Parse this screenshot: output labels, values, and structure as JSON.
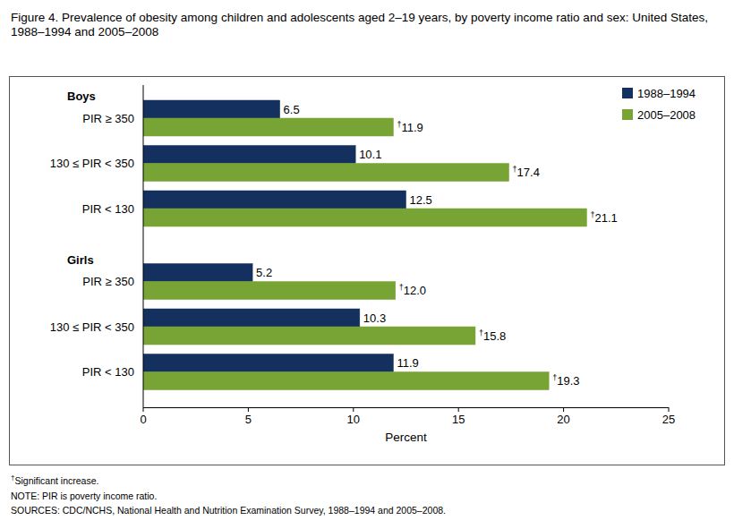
{
  "chart_data": {
    "type": "bar",
    "orientation": "horizontal",
    "title": "Figure 4. Prevalence of obesity among children and adolescents aged 2–19 years, by poverty income ratio and sex: United States, 1988–1994 and 2005–2008",
    "groups": [
      {
        "name": "Boys",
        "categories": [
          "PIR ≥ 350",
          "130 ≤ PIR < 350",
          "PIR < 130"
        ]
      },
      {
        "name": "Girls",
        "categories": [
          "PIR ≥ 350",
          "130 ≤ PIR < 350",
          "PIR < 130"
        ]
      }
    ],
    "series": [
      {
        "name": "1988–1994",
        "color": "#14305e",
        "values": [
          6.5,
          10.1,
          12.5,
          5.2,
          10.3,
          11.9
        ]
      },
      {
        "name": "2005–2008",
        "color": "#78a435",
        "values": [
          11.9,
          17.4,
          21.1,
          12.0,
          15.8,
          19.3
        ],
        "value_labels": [
          "†11.9",
          "†17.4",
          "†21.1",
          "†12.0",
          "†15.8",
          "†19.3"
        ]
      }
    ],
    "x_label": "Percent",
    "xlim": [
      0,
      25
    ],
    "xticks": [
      0,
      5,
      10,
      15,
      20,
      25
    ],
    "grid": false,
    "legend": "top-right",
    "data_labels": true,
    "notes": [
      "†Significant increase.",
      "NOTE: PIR is poverty income ratio.",
      "SOURCES: CDC/NCHS, National Health and Nutrition Examination Survey, 1988–1994 and 2005–2008."
    ]
  }
}
